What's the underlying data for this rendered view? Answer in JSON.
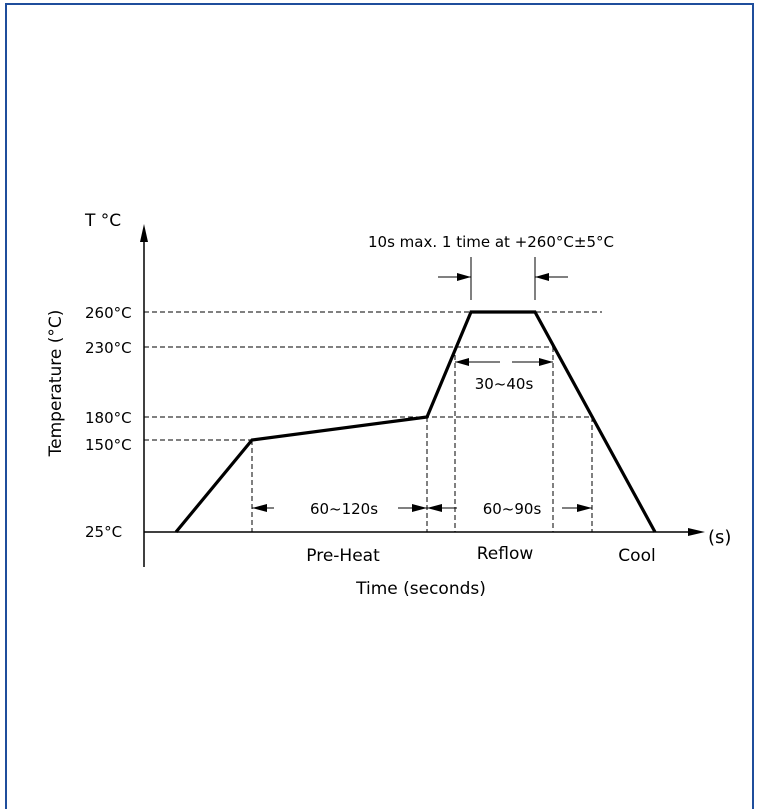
{
  "frame_color": "#1f4e9c",
  "diagram": {
    "y_unit_label": "T °C",
    "y_axis_title": "Temperature (°C)",
    "x_axis_title": "Time (seconds)",
    "x_unit_label": "(s)",
    "y_ticks": [
      "260°C",
      "230°C",
      "180°C",
      "150°C",
      "25°C"
    ],
    "peak_note": "10s max. 1 time at +260°C±5°C",
    "intervals": {
      "preheat_time": "60~120s",
      "reflow_time": "60~90s",
      "peak_window": "30~40s"
    },
    "phases": {
      "preheat": "Pre-Heat",
      "reflow": "Reflow",
      "cool": "Cool"
    }
  }
}
